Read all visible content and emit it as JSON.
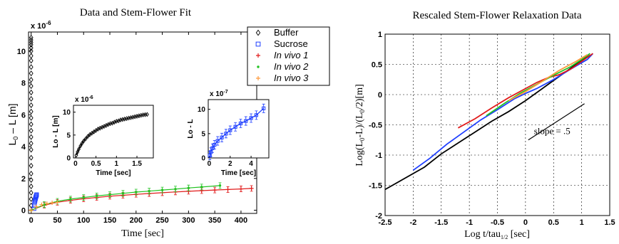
{
  "chart_data": [
    {
      "type": "scatter",
      "title": "Data and Stem-Flower Fit",
      "xlabel": "Time [sec]",
      "ylabel_main": "L",
      "ylabel_sub": "0",
      "ylabel_rest": " – L [m]",
      "exponent_label": "x 10",
      "exponent_value": "-6",
      "xlim": [
        -5,
        430
      ],
      "ylim": [
        -0.2,
        11.2
      ],
      "x_ticks": [
        0,
        50,
        100,
        150,
        200,
        250,
        300,
        350,
        400
      ],
      "y_ticks": [
        0,
        2,
        4,
        6,
        8,
        10
      ],
      "series": [
        {
          "name": "Buffer",
          "color": "#000000",
          "marker": "diamond",
          "x": [
            0,
            0,
            0,
            0,
            0,
            0,
            0,
            0,
            0,
            0,
            0,
            0,
            0,
            0,
            0,
            0,
            0,
            0,
            0,
            0,
            0,
            0,
            0,
            0,
            0,
            0,
            0,
            0,
            0,
            0
          ],
          "y": [
            0.3,
            0.7,
            1.1,
            1.5,
            1.9,
            2.3,
            2.8,
            3.3,
            3.8,
            4.2,
            4.6,
            5.0,
            5.4,
            5.8,
            6.2,
            6.6,
            7.0,
            7.4,
            7.8,
            8.2,
            8.6,
            9.0,
            9.4,
            9.7,
            10.0,
            10.2,
            10.4,
            10.55,
            10.7,
            10.85
          ]
        },
        {
          "name": "Sucrose",
          "color": "#1f3fff",
          "marker": "square",
          "x": [
            0,
            0.5,
            1,
            1.5,
            2,
            2.5,
            3,
            3.5,
            4,
            4.5,
            5
          ],
          "y": [
            0.1,
            0.3,
            0.45,
            0.55,
            0.62,
            0.7,
            0.76,
            0.82,
            0.88,
            0.93,
            0.98
          ]
        },
        {
          "name": "In vivo 1",
          "color": "#e11b1b",
          "marker": "plus",
          "x": [
            0,
            25,
            50,
            75,
            100,
            125,
            150,
            175,
            200,
            225,
            250,
            275,
            300,
            325,
            350,
            375,
            400,
            420
          ],
          "y": [
            0,
            0.32,
            0.5,
            0.62,
            0.72,
            0.8,
            0.88,
            0.94,
            1.0,
            1.05,
            1.1,
            1.15,
            1.19,
            1.23,
            1.27,
            1.3,
            1.34,
            1.37
          ]
        },
        {
          "name": "In vivo 2",
          "color": "#22c322",
          "marker": "dot",
          "x": [
            0,
            25,
            50,
            75,
            100,
            125,
            150,
            175,
            200,
            225,
            250,
            275,
            300,
            325,
            360
          ],
          "y": [
            0,
            0.35,
            0.56,
            0.7,
            0.8,
            0.9,
            0.98,
            1.06,
            1.14,
            1.2,
            1.27,
            1.33,
            1.4,
            1.46,
            1.55
          ]
        },
        {
          "name": "In vivo 3",
          "color": "#ff9a3c",
          "marker": "plus",
          "x": [
            0,
            10,
            20,
            30,
            40,
            50
          ],
          "y": [
            0,
            0.22,
            0.35,
            0.42,
            0.47,
            0.5
          ]
        }
      ],
      "insets": [
        {
          "ylabel": "Lo - L [m]",
          "xlabel": "Time [sec]",
          "exponent_label": "x 10",
          "exponent_value": "-6",
          "xlim": [
            -0.05,
            1.9
          ],
          "ylim": [
            0,
            11.5
          ],
          "x_ticks": [
            0,
            0.5,
            1,
            1.5
          ],
          "y_ticks": [
            0,
            5,
            10
          ],
          "series": {
            "color": "#000000",
            "marker": "diamond",
            "x": [
              0.02,
              0.05,
              0.08,
              0.12,
              0.16,
              0.2,
              0.25,
              0.3,
              0.35,
              0.4,
              0.45,
              0.5,
              0.55,
              0.6,
              0.65,
              0.7,
              0.75,
              0.8,
              0.85,
              0.9,
              0.95,
              1.0,
              1.05,
              1.1,
              1.15,
              1.2,
              1.25,
              1.3,
              1.35,
              1.4,
              1.45,
              1.5,
              1.55,
              1.6,
              1.65,
              1.7,
              1.75
            ],
            "y": [
              0.6,
              1.3,
              1.9,
              2.6,
              3.2,
              3.7,
              4.2,
              4.7,
              5.1,
              5.4,
              5.7,
              6.0,
              6.3,
              6.5,
              6.7,
              6.9,
              7.1,
              7.3,
              7.5,
              7.6,
              7.8,
              8.0,
              8.1,
              8.3,
              8.4,
              8.5,
              8.6,
              8.7,
              8.8,
              8.9,
              9.0,
              9.1,
              9.2,
              9.3,
              9.4,
              9.45,
              9.5
            ]
          }
        },
        {
          "ylabel": "Lo - L",
          "xlabel": "Time [sec]",
          "exponent_label": "x 10",
          "exponent_value": "-7",
          "xlim": [
            -0.1,
            5.7
          ],
          "ylim": [
            0,
            12
          ],
          "x_ticks": [
            0,
            2,
            4
          ],
          "y_ticks": [
            0,
            5,
            10
          ],
          "series": {
            "color": "#1f3fff",
            "marker": "square",
            "x": [
              0.05,
              0.15,
              0.3,
              0.5,
              0.8,
              1.2,
              1.6,
              2.0,
              2.5,
              3.0,
              3.5,
              4.0,
              4.5,
              5.2
            ],
            "y": [
              0.5,
              1.2,
              2.0,
              2.7,
              3.5,
              4.2,
              5.0,
              5.7,
              6.4,
              7.1,
              7.6,
              8.2,
              8.8,
              10.2
            ]
          }
        }
      ]
    },
    {
      "type": "line",
      "title": "Rescaled Stem-Flower Relaxation Data",
      "xlabel_main": "Log t/tau",
      "xlabel_sub": "1/2",
      "xlabel_rest": " [sec]",
      "ylabel_main": "Log(L",
      "ylabel_sub": "0",
      "ylabel_rest": "-L)/(L",
      "ylabel_sub2": "0",
      "ylabel_rest2": "/2)[m]",
      "xlim": [
        -2.5,
        1.5
      ],
      "ylim": [
        -2,
        1
      ],
      "x_ticks": [
        -2.5,
        -2,
        -1.5,
        -1,
        -0.5,
        0,
        0.5,
        1,
        1.5
      ],
      "x_tick_labels": [
        "-2.5",
        "-2",
        "-1.5",
        "-1",
        "-0.5",
        "0",
        "0.5",
        "1",
        "1.5"
      ],
      "y_ticks": [
        -2,
        -1.5,
        -1,
        -0.5,
        0,
        0.5,
        1
      ],
      "y_tick_labels": [
        "-2",
        "-1.5",
        "-1",
        "-0.5",
        "0",
        "0.5",
        "1"
      ],
      "grid": true,
      "annotation": "slope = .5",
      "series": [
        {
          "color": "#000000",
          "x": [
            -2.5,
            -1.8,
            -1.5,
            -1.2,
            -0.9,
            -0.6,
            -0.3,
            0,
            0.3,
            0.6,
            0.9,
            1.15
          ],
          "y": [
            -1.57,
            -1.2,
            -0.98,
            -0.8,
            -0.62,
            -0.44,
            -0.28,
            -0.1,
            0.1,
            0.3,
            0.5,
            0.65
          ]
        },
        {
          "color": "#1f3fff",
          "x": [
            -2.0,
            -1.7,
            -1.4,
            -1.1,
            -0.8,
            -0.5,
            -0.2,
            0,
            0.2,
            0.5,
            0.8,
            1.1,
            1.2
          ],
          "y": [
            -1.25,
            -1.05,
            -0.82,
            -0.62,
            -0.42,
            -0.25,
            -0.07,
            0.02,
            0.1,
            0.25,
            0.42,
            0.58,
            0.68
          ]
        },
        {
          "color": "#e11b1b",
          "x": [
            -1.2,
            -0.9,
            -0.6,
            -0.3,
            0,
            0.2,
            0.4,
            0.6,
            0.8,
            1.0,
            1.2
          ],
          "y": [
            -0.55,
            -0.4,
            -0.22,
            -0.05,
            0.1,
            0.2,
            0.28,
            0.33,
            0.42,
            0.55,
            0.68
          ]
        },
        {
          "color": "#22c322",
          "x": [
            -0.7,
            -0.4,
            -0.1,
            0.2,
            0.5,
            0.8,
            1.0,
            1.15
          ],
          "y": [
            -0.35,
            -0.16,
            0.02,
            0.17,
            0.32,
            0.46,
            0.58,
            0.68
          ]
        },
        {
          "color": "#ff9a3c",
          "x": [
            -0.3,
            0,
            0.3,
            0.6,
            0.9,
            1.1
          ],
          "y": [
            -0.1,
            0.05,
            0.22,
            0.4,
            0.55,
            0.66
          ]
        }
      ],
      "slope_line": {
        "x": [
          0.05,
          1.05
        ],
        "y": [
          -0.75,
          -0.15
        ]
      }
    }
  ]
}
